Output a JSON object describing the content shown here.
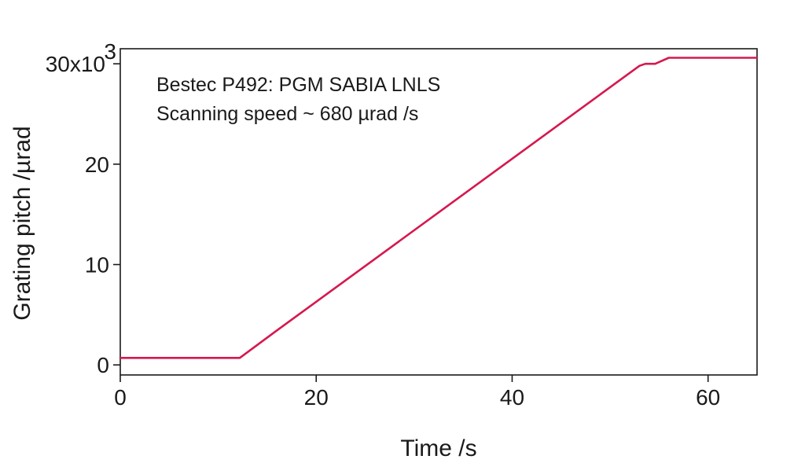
{
  "chart_data": {
    "type": "line",
    "title": "",
    "xlabel": "Time /s",
    "ylabel": "Grating pitch /µrad",
    "xlim": [
      0,
      65
    ],
    "ylim": [
      -1000,
      31500
    ],
    "x_ticks": [
      0,
      20,
      40,
      60
    ],
    "x_tick_labels": [
      "0",
      "20",
      "40",
      "60"
    ],
    "y_ticks": [
      0,
      10000,
      20000,
      30000
    ],
    "y_tick_labels": [
      "0",
      "10",
      "20",
      "30x10"
    ],
    "y_tick_top_exponent": "3",
    "grid": false,
    "annotations": [
      "Bestec P492: PGM SABIA LNLS",
      "Scanning speed ~ 680 µrad /s"
    ],
    "series": [
      {
        "color": "#d6184f",
        "x": [
          0,
          12.2,
          15.8,
          53.0,
          53.6,
          54.6,
          55.3,
          56.0,
          65
        ],
        "y": [
          700,
          700,
          3300,
          29800,
          30000,
          30000,
          30300,
          30600,
          30600
        ]
      }
    ]
  }
}
